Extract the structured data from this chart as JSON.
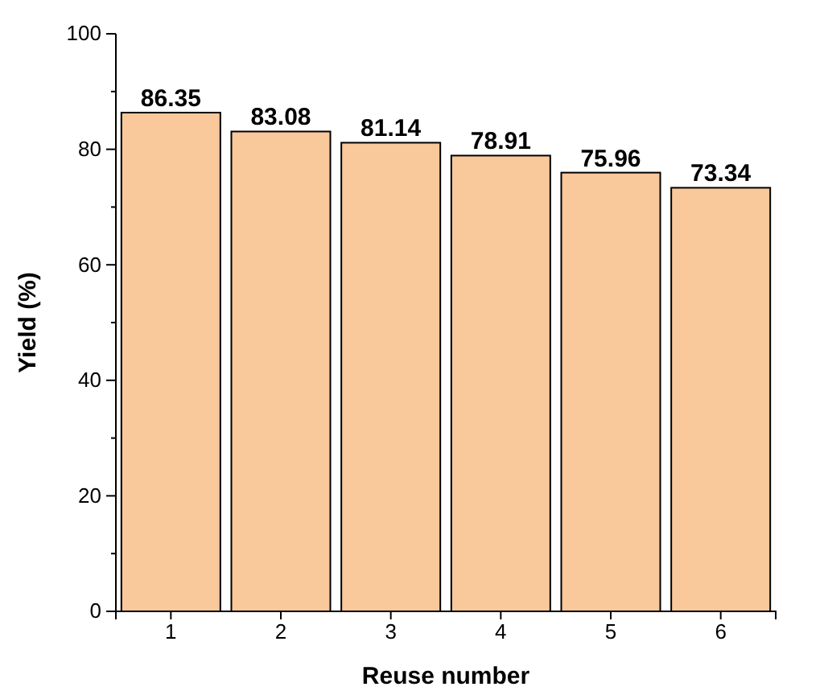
{
  "chart_data": {
    "type": "bar",
    "xlabel": "Reuse number",
    "ylabel": "Yield (%)",
    "categories": [
      "1",
      "2",
      "3",
      "4",
      "5",
      "6"
    ],
    "values": [
      86.35,
      83.08,
      81.14,
      78.91,
      75.96,
      73.34
    ],
    "color": "#f9c89b",
    "ylim": [
      0,
      100
    ],
    "yticks": [
      0,
      {
        "value": 10,
        "label": null
      },
      20,
      {
        "value": 30,
        "label": null
      },
      40,
      {
        "value": 50,
        "label": null
      },
      60,
      {
        "value": 70,
        "label": null
      },
      80,
      {
        "value": 90,
        "label": null
      },
      100
    ],
    "data_labels": true,
    "grid": false
  }
}
